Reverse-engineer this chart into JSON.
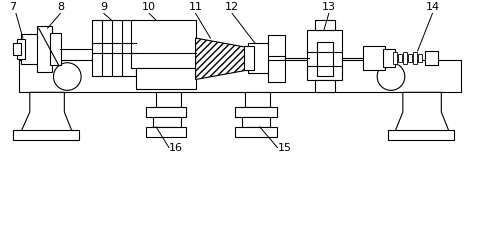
{
  "bg_color": "#ffffff",
  "line_color": "#000000",
  "label_fontsize": 8,
  "fig_width": 4.8,
  "fig_height": 2.46,
  "dpi": 100
}
